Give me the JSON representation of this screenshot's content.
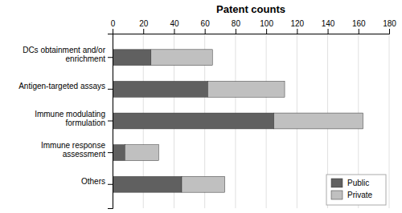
{
  "chart_data": {
    "type": "bar",
    "orientation": "horizontal",
    "stacked": true,
    "title": "Patent counts",
    "categories": [
      "Others",
      "Immune response\nassessment",
      "Immune modulating\nformulation",
      "Antigen-targeted assays",
      "DCs obtainment and/or\nenrichment"
    ],
    "series": [
      {
        "name": "Public",
        "color": "#606060",
        "values": [
          45,
          8,
          105,
          62,
          25
        ]
      },
      {
        "name": "Private",
        "color": "#c0c0c0",
        "values": [
          28,
          22,
          58,
          50,
          40
        ]
      }
    ],
    "xlim": [
      0,
      180
    ],
    "xticks": [
      0,
      20,
      40,
      60,
      80,
      100,
      120,
      140,
      160,
      180
    ],
    "grid": true,
    "legend": "lower right"
  }
}
